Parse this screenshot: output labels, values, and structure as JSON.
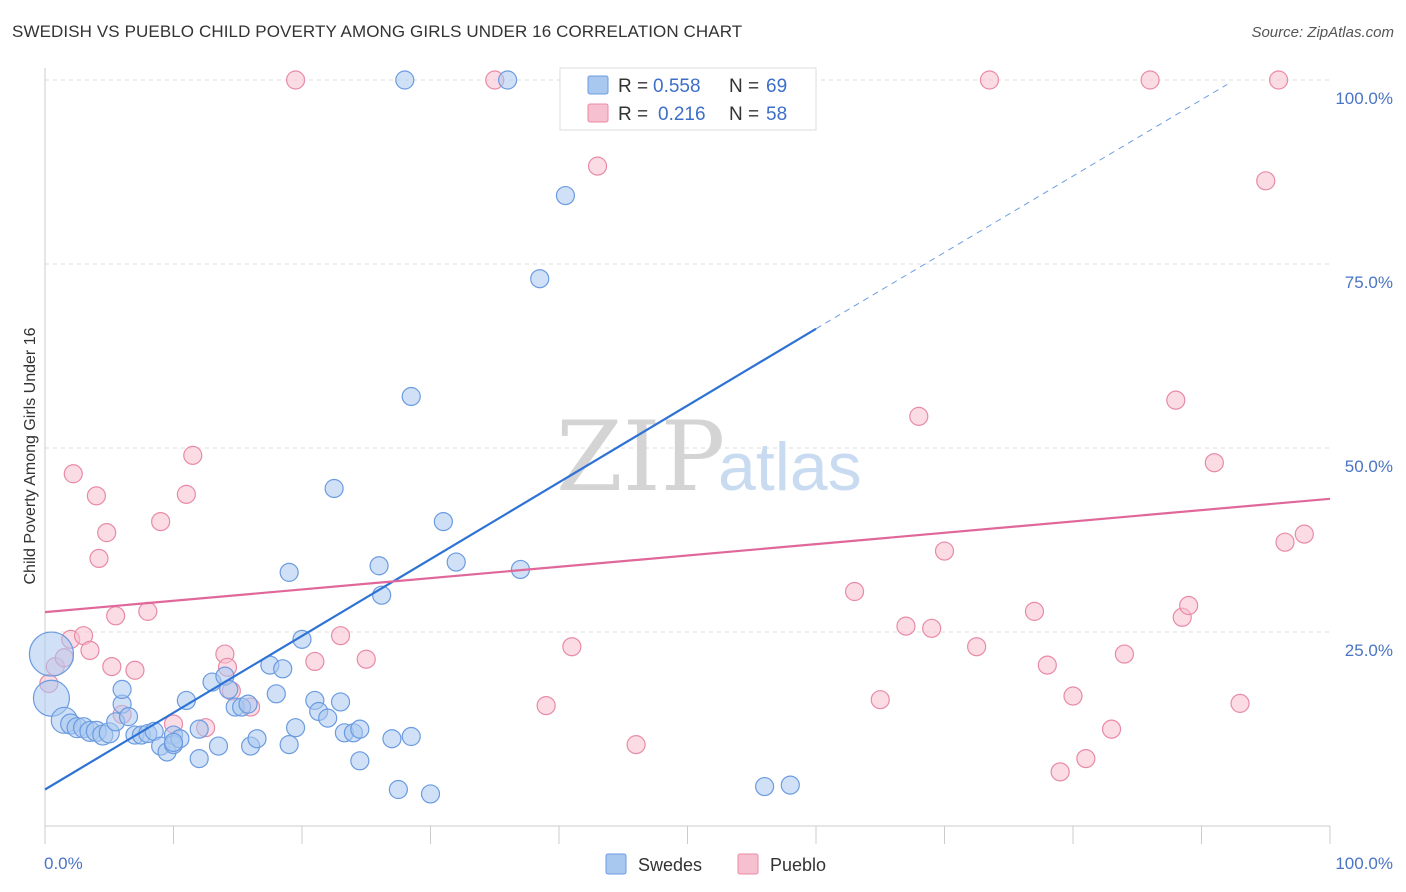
{
  "title": "SWEDISH VS PUEBLO CHILD POVERTY AMONG GIRLS UNDER 16 CORRELATION CHART",
  "source": "Source: ZipAtlas.com",
  "watermark": {
    "zip": "ZIP",
    "atlas": "atlas"
  },
  "colors": {
    "swedes_fill": "#a9c8f0",
    "swedes_stroke": "#6b9be0",
    "swedes_line": "#2e73d4",
    "pueblo_fill": "#f7c0d0",
    "pueblo_stroke": "#e88aa6",
    "pueblo_line": "#e0679a",
    "tick_text": "#4a74c4",
    "grid": "#dddddd"
  },
  "legend": {
    "r_label": "R =",
    "n_label": "N =",
    "rows": [
      {
        "r": "0.558",
        "n": "69"
      },
      {
        "r": "0.216",
        "n": "58"
      }
    ]
  },
  "bottom_legend": [
    "Swedes",
    "Pueblo"
  ],
  "chart_data": {
    "type": "scatter",
    "title": "SWEDISH VS PUEBLO CHILD POVERTY AMONG GIRLS UNDER 16 CORRELATION CHART",
    "xlabel": "",
    "ylabel": "Child Poverty Among Girls Under 16",
    "xlim": [
      0,
      100
    ],
    "ylim": [
      0,
      100
    ],
    "x_tick_labels": [
      "0.0%",
      "100.0%"
    ],
    "y_tick_labels": [
      "25.0%",
      "50.0%",
      "75.0%",
      "100.0%"
    ],
    "y_ticks": [
      25,
      50,
      75,
      100
    ],
    "grid": true,
    "legend_position": "top-center",
    "series": [
      {
        "name": "Swedes",
        "r": 0.558,
        "n": 69,
        "trend": {
          "x0": 0,
          "y0": 3.6,
          "x1": 60,
          "y1": 66.2,
          "dashed_to_x": 92,
          "dashed_to_y": 99.4
        },
        "points": [
          [
            0.5,
            22,
            22
          ],
          [
            0.5,
            16,
            18
          ],
          [
            1.5,
            13,
            13
          ],
          [
            2,
            12.5,
            10
          ],
          [
            2.5,
            12,
            10
          ],
          [
            3,
            12,
            10
          ],
          [
            3.5,
            11.5,
            10
          ],
          [
            4,
            11.5,
            10
          ],
          [
            4.5,
            11,
            10
          ],
          [
            5,
            11.3,
            10
          ],
          [
            5.5,
            12.8,
            9
          ],
          [
            6,
            15.2,
            9
          ],
          [
            6,
            17.2,
            9
          ],
          [
            6.5,
            13.5,
            9
          ],
          [
            7,
            11,
            9
          ],
          [
            7.5,
            11,
            9
          ],
          [
            8,
            11.2,
            9
          ],
          [
            8.5,
            11.5,
            9
          ],
          [
            9,
            9.5,
            9
          ],
          [
            9.5,
            8.7,
            9
          ],
          [
            10,
            11,
            9
          ],
          [
            10,
            9.7,
            9
          ],
          [
            10.5,
            10.5,
            9
          ],
          [
            11,
            15.7,
            9
          ],
          [
            12,
            7.8,
            9
          ],
          [
            12,
            11.8,
            9
          ],
          [
            13,
            18.2,
            9
          ],
          [
            13.5,
            9.5,
            9
          ],
          [
            14,
            19,
            9
          ],
          [
            14.3,
            17.2,
            9
          ],
          [
            14.8,
            14.8,
            9
          ],
          [
            15.3,
            14.8,
            9
          ],
          [
            15.8,
            15.2,
            9
          ],
          [
            16,
            9.5,
            9
          ],
          [
            16.5,
            10.5,
            9
          ],
          [
            17.5,
            20.5,
            9
          ],
          [
            18,
            16.6,
            9
          ],
          [
            18.5,
            20,
            9
          ],
          [
            19,
            33.1,
            9
          ],
          [
            19,
            9.7,
            9
          ],
          [
            19.5,
            12,
            9
          ],
          [
            20,
            24,
            9
          ],
          [
            21,
            15.7,
            9
          ],
          [
            21.3,
            14.2,
            9
          ],
          [
            22,
            13.3,
            9
          ],
          [
            23,
            15.5,
            9
          ],
          [
            23.3,
            11.3,
            9
          ],
          [
            24,
            11.3,
            9
          ],
          [
            24.5,
            11.8,
            9
          ],
          [
            24.5,
            7.5,
            9
          ],
          [
            26,
            34,
            9
          ],
          [
            26.2,
            30,
            9
          ],
          [
            27,
            10.5,
            9
          ],
          [
            27.5,
            3.6,
            9
          ],
          [
            28,
            100,
            9
          ],
          [
            28.5,
            57,
            9
          ],
          [
            28.5,
            10.8,
            9
          ],
          [
            30,
            3,
            9
          ],
          [
            31,
            40,
            9
          ],
          [
            32,
            34.5,
            9
          ],
          [
            36,
            100,
            9
          ],
          [
            37,
            33.5,
            9
          ],
          [
            38.5,
            73,
            9
          ],
          [
            40.5,
            84.3,
            9
          ],
          [
            43,
            100,
            9
          ],
          [
            56,
            4,
            9
          ],
          [
            58,
            4.2,
            9
          ],
          [
            22.5,
            44.5,
            9
          ],
          [
            10,
            10,
            9
          ]
        ]
      },
      {
        "name": "Pueblo",
        "r": 0.216,
        "n": 58,
        "trend": {
          "x0": 0,
          "y0": 27.7,
          "x1": 100,
          "y1": 43.1
        },
        "points": [
          [
            0.3,
            18,
            9
          ],
          [
            0.8,
            20.3,
            9
          ],
          [
            1.5,
            21.5,
            9
          ],
          [
            2,
            24,
            9
          ],
          [
            2.2,
            46.5,
            9
          ],
          [
            3,
            24.5,
            9
          ],
          [
            3.5,
            22.5,
            9
          ],
          [
            4,
            43.5,
            9
          ],
          [
            4.2,
            35,
            9
          ],
          [
            4.8,
            38.5,
            9
          ],
          [
            5.2,
            20.3,
            9
          ],
          [
            5.5,
            27.2,
            9
          ],
          [
            6,
            13.8,
            9
          ],
          [
            7,
            19.8,
            9
          ],
          [
            8,
            27.8,
            9
          ],
          [
            9,
            40,
            9
          ],
          [
            10,
            12.5,
            9
          ],
          [
            11,
            43.7,
            9
          ],
          [
            11.5,
            49,
            9
          ],
          [
            12.5,
            12,
            9
          ],
          [
            14,
            22,
            9
          ],
          [
            14.2,
            20.2,
            9
          ],
          [
            14.5,
            17,
            9
          ],
          [
            16,
            14.8,
            9
          ],
          [
            19.5,
            100,
            9
          ],
          [
            21,
            21,
            9
          ],
          [
            23,
            24.5,
            9
          ],
          [
            25,
            21.3,
            9
          ],
          [
            35,
            100,
            9
          ],
          [
            39,
            15,
            9
          ],
          [
            41,
            23,
            9
          ],
          [
            43,
            88.3,
            9
          ],
          [
            46,
            9.7,
            9
          ],
          [
            63,
            30.5,
            9
          ],
          [
            65,
            15.8,
            9
          ],
          [
            67,
            25.8,
            9
          ],
          [
            68,
            54.3,
            9
          ],
          [
            69,
            25.5,
            9
          ],
          [
            70,
            36,
            9
          ],
          [
            72.5,
            23,
            9
          ],
          [
            73.5,
            100,
            9
          ],
          [
            77,
            27.8,
            9
          ],
          [
            78,
            20.5,
            9
          ],
          [
            79,
            6,
            9
          ],
          [
            80,
            16.3,
            9
          ],
          [
            81,
            7.8,
            9
          ],
          [
            83,
            11.8,
            9
          ],
          [
            84,
            22,
            9
          ],
          [
            86,
            100,
            9
          ],
          [
            88,
            56.5,
            9
          ],
          [
            88.5,
            27,
            9
          ],
          [
            89,
            28.6,
            9
          ],
          [
            91,
            48,
            9
          ],
          [
            93,
            15.3,
            9
          ],
          [
            95,
            86.3,
            9
          ],
          [
            96,
            100,
            9
          ],
          [
            96.5,
            37.2,
            9
          ],
          [
            98,
            38.3,
            9
          ]
        ]
      }
    ]
  }
}
